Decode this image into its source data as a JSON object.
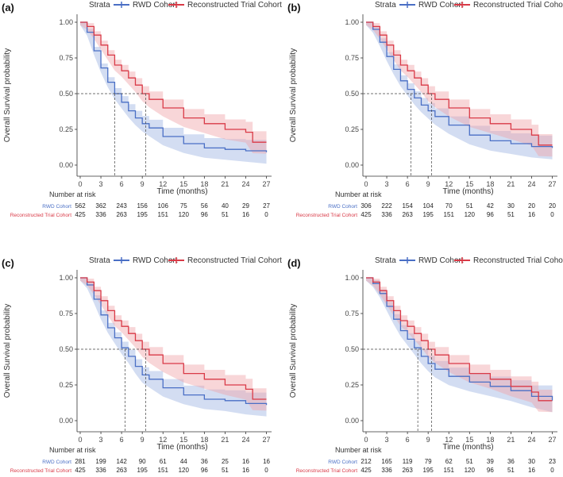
{
  "figure": {
    "strata_label": "Strata",
    "ylabel": "Overall Survival probability",
    "xlabel": "Time (months)",
    "risk_title": "Number at risk",
    "x_ticks": [
      0,
      3,
      6,
      9,
      12,
      15,
      18,
      21,
      24,
      27
    ],
    "y_ticks": [
      "0.00",
      "0.25",
      "0.50",
      "0.75",
      "1.00"
    ],
    "colors": {
      "rwd": "#4a6fc5",
      "trial": "#d93a47",
      "rwd_band": "#9db4e3",
      "trial_band": "#f0a3a8"
    }
  },
  "chart_data": [
    {
      "panel": "(a)",
      "type": "line",
      "xlim": [
        0,
        27.5
      ],
      "ylim": [
        0,
        1
      ],
      "legend": [
        "RWD Cohort",
        "Reconstructed Trial Cohort"
      ],
      "risk_times": [
        0,
        3,
        6,
        9,
        12,
        15,
        18,
        21,
        24,
        27
      ],
      "median": {
        "rwd": 5,
        "trial": 9.5
      },
      "series": [
        {
          "name": "RWD Cohort",
          "key": "rwd",
          "x": [
            0,
            1,
            2,
            3,
            4,
            5,
            6,
            7,
            8,
            9,
            10,
            12,
            15,
            18,
            21,
            24,
            27
          ],
          "y": [
            1.0,
            0.93,
            0.8,
            0.68,
            0.58,
            0.5,
            0.44,
            0.38,
            0.33,
            0.29,
            0.26,
            0.2,
            0.15,
            0.12,
            0.11,
            0.1,
            0.09
          ],
          "risk": [
            "562",
            "362",
            "243",
            "156",
            "106",
            "75",
            "56",
            "40",
            "29",
            "27"
          ]
        },
        {
          "name": "Reconstructed Trial Cohort",
          "key": "trial",
          "x": [
            0,
            1,
            2,
            3,
            4,
            5,
            6,
            7,
            8,
            9,
            10,
            12,
            15,
            18,
            21,
            24,
            25,
            27
          ],
          "y": [
            1.0,
            0.97,
            0.91,
            0.84,
            0.77,
            0.7,
            0.66,
            0.61,
            0.56,
            0.5,
            0.46,
            0.4,
            0.33,
            0.29,
            0.25,
            0.23,
            0.16,
            0.16
          ],
          "risk": [
            "425",
            "336",
            "263",
            "195",
            "151",
            "120",
            "96",
            "51",
            "16",
            "0"
          ]
        }
      ]
    },
    {
      "panel": "(b)",
      "type": "line",
      "xlim": [
        0,
        27.5
      ],
      "ylim": [
        0,
        1
      ],
      "legend": [
        "RWD Cohort",
        "Reconstructed Trial Cohort"
      ],
      "risk_times": [
        0,
        3,
        6,
        9,
        12,
        15,
        18,
        21,
        24,
        27
      ],
      "median": {
        "rwd": 6.5,
        "trial": 9.5
      },
      "series": [
        {
          "name": "RWD Cohort",
          "key": "rwd",
          "x": [
            0,
            1,
            2,
            3,
            4,
            5,
            6,
            7,
            8,
            9,
            10,
            12,
            15,
            18,
            21,
            24,
            27
          ],
          "y": [
            1.0,
            0.95,
            0.86,
            0.76,
            0.67,
            0.59,
            0.53,
            0.47,
            0.42,
            0.38,
            0.34,
            0.28,
            0.21,
            0.17,
            0.15,
            0.13,
            0.12
          ],
          "risk": [
            "306",
            "222",
            "154",
            "104",
            "70",
            "51",
            "42",
            "30",
            "20",
            "20"
          ]
        },
        {
          "name": "Reconstructed Trial Cohort",
          "key": "trial",
          "x": [
            0,
            1,
            2,
            3,
            4,
            5,
            6,
            7,
            8,
            9,
            10,
            12,
            15,
            18,
            21,
            24,
            25,
            27
          ],
          "y": [
            1.0,
            0.97,
            0.91,
            0.84,
            0.77,
            0.7,
            0.66,
            0.61,
            0.56,
            0.5,
            0.46,
            0.4,
            0.33,
            0.29,
            0.25,
            0.21,
            0.14,
            0.14
          ],
          "risk": [
            "425",
            "336",
            "263",
            "195",
            "151",
            "120",
            "96",
            "51",
            "16",
            "0"
          ]
        }
      ]
    },
    {
      "panel": "(c)",
      "type": "line",
      "xlim": [
        0,
        27.5
      ],
      "ylim": [
        0,
        1
      ],
      "legend": [
        "RWD Cohort",
        "Reconstructed Trial Cohort"
      ],
      "risk_times": [
        0,
        3,
        6,
        9,
        12,
        15,
        18,
        21,
        24,
        27
      ],
      "median": {
        "rwd": 6.5,
        "trial": 9.5
      },
      "series": [
        {
          "name": "RWD Cohort",
          "key": "rwd",
          "x": [
            0,
            1,
            2,
            3,
            4,
            5,
            6,
            7,
            8,
            9,
            10,
            12,
            15,
            18,
            21,
            24,
            27
          ],
          "y": [
            1.0,
            0.95,
            0.85,
            0.74,
            0.65,
            0.58,
            0.51,
            0.45,
            0.38,
            0.32,
            0.29,
            0.23,
            0.18,
            0.15,
            0.14,
            0.12,
            0.11
          ],
          "risk": [
            "281",
            "199",
            "142",
            "90",
            "61",
            "44",
            "36",
            "25",
            "16",
            "16"
          ]
        },
        {
          "name": "Reconstructed Trial Cohort",
          "key": "trial",
          "x": [
            0,
            1,
            2,
            3,
            4,
            5,
            6,
            7,
            8,
            9,
            10,
            12,
            15,
            18,
            21,
            24,
            25,
            27
          ],
          "y": [
            1.0,
            0.97,
            0.91,
            0.84,
            0.77,
            0.7,
            0.66,
            0.61,
            0.56,
            0.5,
            0.46,
            0.4,
            0.33,
            0.29,
            0.25,
            0.22,
            0.15,
            0.15
          ],
          "risk": [
            "425",
            "336",
            "263",
            "195",
            "151",
            "120",
            "96",
            "51",
            "16",
            "0"
          ]
        }
      ]
    },
    {
      "panel": "(d)",
      "type": "line",
      "xlim": [
        0,
        27.5
      ],
      "ylim": [
        0,
        1
      ],
      "legend": [
        "RWD Cohort",
        "Reconstructed Trial Cohort"
      ],
      "risk_times": [
        0,
        3,
        6,
        9,
        12,
        15,
        18,
        21,
        24,
        27
      ],
      "median": {
        "rwd": 7.5,
        "trial": 9.5
      },
      "series": [
        {
          "name": "RWD Cohort",
          "key": "rwd",
          "x": [
            0,
            1,
            2,
            3,
            4,
            5,
            6,
            7,
            8,
            9,
            10,
            12,
            15,
            18,
            21,
            24,
            27
          ],
          "y": [
            1.0,
            0.96,
            0.89,
            0.8,
            0.71,
            0.63,
            0.57,
            0.51,
            0.45,
            0.4,
            0.36,
            0.31,
            0.27,
            0.24,
            0.21,
            0.17,
            0.14
          ],
          "risk": [
            "212",
            "165",
            "119",
            "79",
            "62",
            "51",
            "39",
            "36",
            "30",
            "23"
          ]
        },
        {
          "name": "Reconstructed Trial Cohort",
          "key": "trial",
          "x": [
            0,
            1,
            2,
            3,
            4,
            5,
            6,
            7,
            8,
            9,
            10,
            12,
            15,
            18,
            21,
            24,
            25,
            27
          ],
          "y": [
            1.0,
            0.97,
            0.91,
            0.84,
            0.77,
            0.7,
            0.66,
            0.61,
            0.56,
            0.5,
            0.46,
            0.4,
            0.33,
            0.29,
            0.24,
            0.2,
            0.14,
            0.14
          ],
          "risk": [
            "425",
            "336",
            "263",
            "195",
            "151",
            "120",
            "96",
            "51",
            "16",
            "0"
          ]
        }
      ]
    }
  ]
}
